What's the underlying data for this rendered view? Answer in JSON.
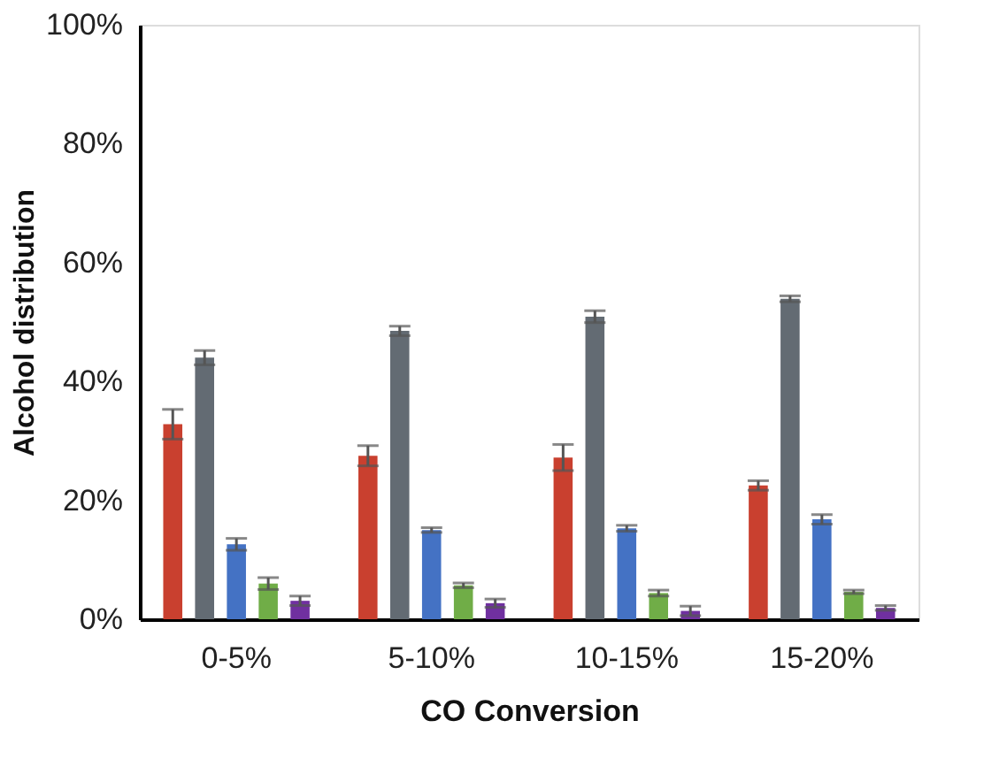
{
  "chart_data": {
    "type": "bar",
    "xlabel": "CO Conversion",
    "ylabel": "Alcohol distribution",
    "categories": [
      "0-5%",
      "5-10%",
      "10-15%",
      "15-20%"
    ],
    "series": [
      {
        "color": "#c9402f",
        "values": [
          32.8,
          27.5,
          27.2,
          22.5
        ],
        "errors": [
          2.5,
          1.7,
          2.2,
          0.8
        ]
      },
      {
        "color": "#636b73",
        "values": [
          44.0,
          48.5,
          50.9,
          53.9
        ],
        "errors": [
          1.2,
          0.8,
          1.0,
          0.5
        ]
      },
      {
        "color": "#4472c4",
        "values": [
          12.6,
          15.0,
          15.3,
          16.8
        ],
        "errors": [
          1.0,
          0.4,
          0.5,
          0.8
        ]
      },
      {
        "color": "#70ad47",
        "values": [
          6.0,
          5.7,
          4.4,
          4.6
        ],
        "errors": [
          1.0,
          0.4,
          0.5,
          0.3
        ]
      },
      {
        "color": "#7030a0",
        "values": [
          3.1,
          2.7,
          1.4,
          1.9
        ],
        "errors": [
          0.8,
          0.7,
          0.8,
          0.4
        ]
      }
    ],
    "ylim": [
      0,
      100
    ],
    "yticks": [
      {
        "value": 0,
        "label": "0%"
      },
      {
        "value": 20,
        "label": "20%"
      },
      {
        "value": 40,
        "label": "40%"
      },
      {
        "value": 60,
        "label": "60%"
      },
      {
        "value": 80,
        "label": "80%"
      },
      {
        "value": 100,
        "label": "100%"
      }
    ],
    "grid": false,
    "legend": false
  }
}
